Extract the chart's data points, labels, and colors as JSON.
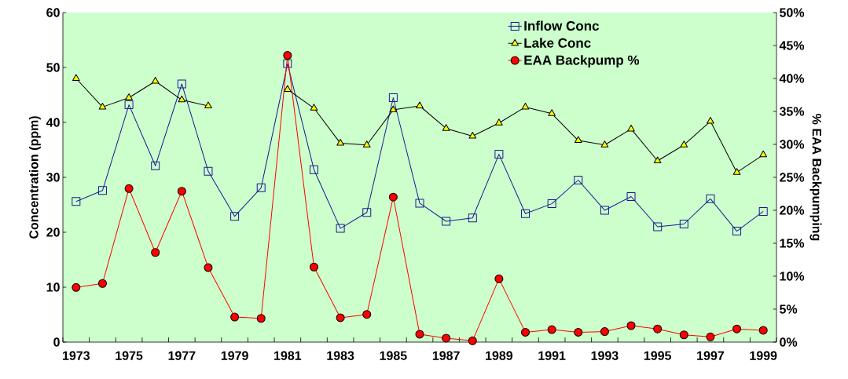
{
  "chart_data": {
    "type": "line",
    "ylabel": "Concentration (ppm)",
    "y2label": "% EAA Backpumping",
    "categories": [
      "1973",
      null,
      "1975",
      null,
      "1977",
      null,
      "1979",
      null,
      "1981",
      null,
      "1983",
      null,
      "1985",
      null,
      "1987",
      null,
      "1989",
      null,
      "1991",
      null,
      "1993",
      null,
      "1995",
      null,
      "1997",
      null,
      "1999"
    ],
    "ylim": [
      0,
      60
    ],
    "yticks": [
      0,
      10,
      20,
      30,
      40,
      50,
      60
    ],
    "y2lim": [
      0,
      50
    ],
    "y2ticks": [
      {
        "value": 0,
        "label": "0%"
      },
      {
        "value": 5,
        "label": "5%"
      },
      {
        "value": 10,
        "label": "10%"
      },
      {
        "value": 15,
        "label": "15%"
      },
      {
        "value": 20,
        "label": "20%"
      },
      {
        "value": 25,
        "label": "25%"
      },
      {
        "value": 30,
        "label": "30%"
      },
      {
        "value": 35,
        "label": "35%"
      },
      {
        "value": 40,
        "label": "40%"
      },
      {
        "value": 45,
        "label": "45%"
      },
      {
        "value": 50,
        "label": "50%"
      }
    ],
    "grid": false,
    "legend": "top right",
    "line_style": "solid",
    "series": [
      {
        "name": "Inflow Conc",
        "color": "#1a1a8c",
        "marker": "square",
        "values": [
          25.6,
          27.6,
          43.2,
          32.1,
          47.0,
          31.1,
          22.9,
          28.1,
          50.7,
          31.4,
          20.7,
          23.6,
          44.5,
          25.3,
          22.0,
          22.6,
          34.2,
          23.4,
          25.2,
          29.5,
          24.0,
          26.5,
          21.0,
          21.5,
          26.1,
          20.2,
          23.8
        ]
      },
      {
        "name": "Lake Conc",
        "color": "#ffff00",
        "marker": "triangle",
        "values": [
          48.0,
          42.8,
          44.5,
          47.5,
          44.1,
          43.0,
          null,
          null,
          46.0,
          42.6,
          36.2,
          35.9,
          42.3,
          43.0,
          38.9,
          37.5,
          39.9,
          42.8,
          41.6,
          36.7,
          35.9,
          38.8,
          33.0,
          35.9,
          40.2,
          30.9,
          34.1
        ]
      },
      {
        "name": "EAA Backpump %",
        "color": "#ff0000",
        "marker": "circle",
        "axis": "y2",
        "values": [
          8.3,
          8.9,
          23.3,
          13.6,
          22.9,
          11.3,
          3.8,
          3.6,
          43.5,
          11.4,
          3.7,
          4.2,
          22.0,
          1.2,
          0.6,
          0.2,
          9.6,
          1.5,
          1.9,
          1.5,
          1.6,
          2.5,
          2.0,
          1.1,
          0.8,
          2.0,
          1.8
        ]
      }
    ]
  }
}
